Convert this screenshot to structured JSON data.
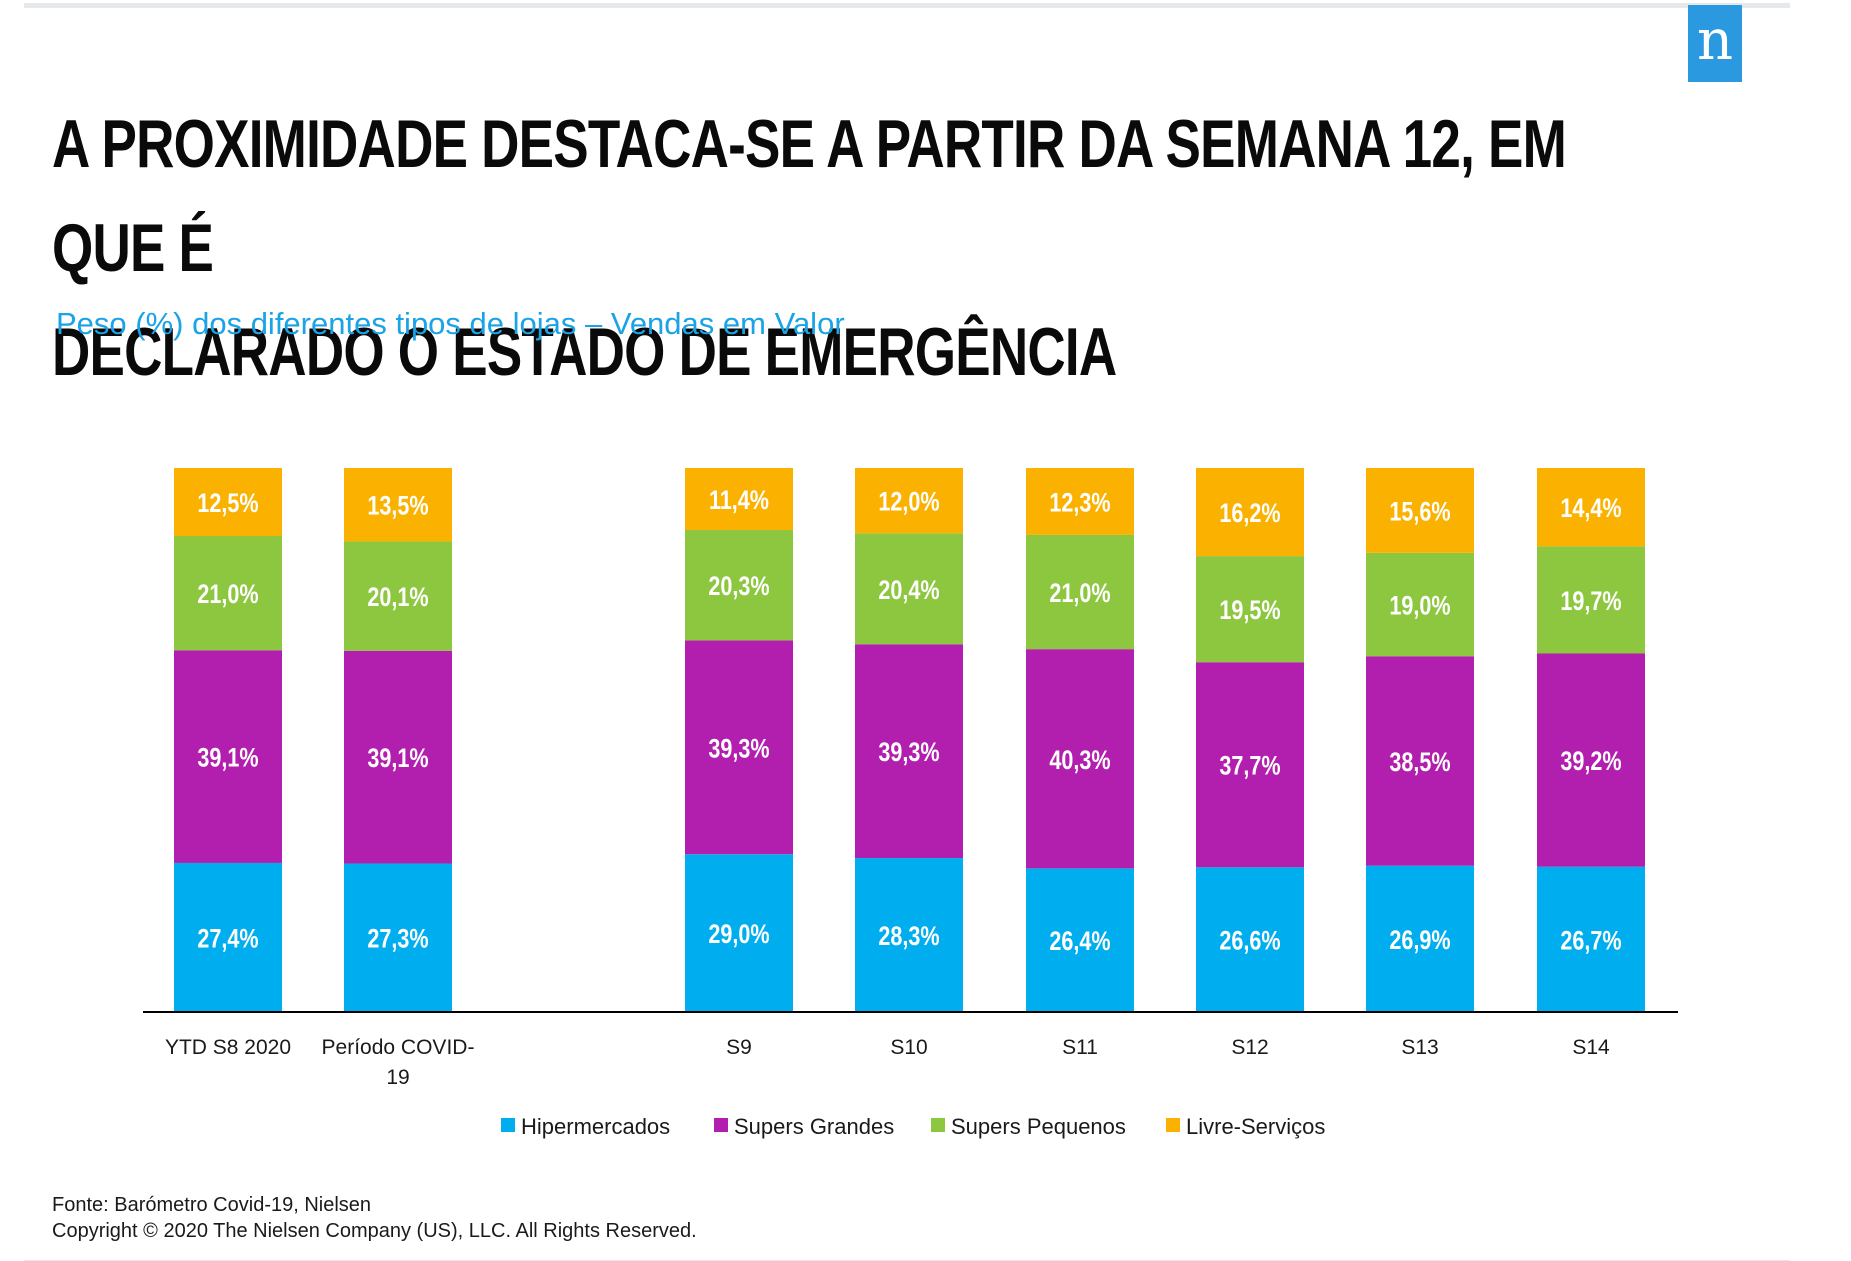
{
  "header": {
    "title_line1": "A proximidade destaca-se a partir da semana 12, em que é",
    "title_line2": "declarado o estado de emergência",
    "subtitle": "Peso (%) dos diferentes tipos de lojas – Vendas em Valor",
    "logo_letter": "n"
  },
  "colors": {
    "Hipermercados": "#00aeef",
    "Supers Grandes": "#b21fae",
    "Supers Pequenos": "#8dc63f",
    "Livre-Serviços": "#fbb100",
    "logo": "#2a99e0",
    "subtitle": "#1aa3e6"
  },
  "chart_data": {
    "type": "bar",
    "stacked": true,
    "categories": [
      "YTD S8 2020",
      "Período COVID-19",
      "S9",
      "S10",
      "S11",
      "S12",
      "S13",
      "S14"
    ],
    "series": [
      {
        "name": "Hipermercados",
        "values": [
          27.4,
          27.3,
          29.0,
          28.3,
          26.4,
          26.6,
          26.9,
          26.7
        ],
        "labels": [
          "27,4%",
          "27,3%",
          "29,0%",
          "28,3%",
          "26,4%",
          "26,6%",
          "26,9%",
          "26,7%"
        ]
      },
      {
        "name": "Supers Grandes",
        "values": [
          39.1,
          39.1,
          39.3,
          39.3,
          40.3,
          37.7,
          38.5,
          39.2
        ],
        "labels": [
          "39,1%",
          "39,1%",
          "39,3%",
          "39,3%",
          "40,3%",
          "37,7%",
          "38,5%",
          "39,2%"
        ]
      },
      {
        "name": "Supers Pequenos",
        "values": [
          21.0,
          20.1,
          20.3,
          20.4,
          21.0,
          19.5,
          19.0,
          19.7
        ],
        "labels": [
          "21,0%",
          "20,1%",
          "20,3%",
          "20,4%",
          "21,0%",
          "19,5%",
          "19,0%",
          "19,7%"
        ]
      },
      {
        "name": "Livre-Serviços",
        "values": [
          12.5,
          13.5,
          11.4,
          12.0,
          12.3,
          16.2,
          15.6,
          14.4
        ],
        "labels": [
          "12,5%",
          "13,5%",
          "11,4%",
          "12,0%",
          "12,3%",
          "16,2%",
          "15,6%",
          "14,4%"
        ]
      }
    ],
    "ylim": [
      0,
      100
    ],
    "legend": "bottom",
    "grid": false
  },
  "footer": {
    "source": "Fonte: Barómetro Covid-19, Nielsen",
    "copyright": "Copyright © 2020 The Nielsen Company (US), LLC. All Rights Reserved."
  }
}
